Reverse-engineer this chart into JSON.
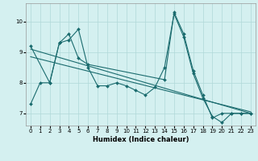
{
  "title": "",
  "xlabel": "Humidex (Indice chaleur)",
  "ylabel": "",
  "bg_color": "#d4f0f0",
  "line_color": "#1a6b6e",
  "grid_color": "#b0d8d8",
  "xlim": [
    -0.5,
    23.5
  ],
  "ylim": [
    6.6,
    10.6
  ],
  "xticks": [
    0,
    1,
    2,
    3,
    4,
    5,
    6,
    7,
    8,
    9,
    10,
    11,
    12,
    13,
    14,
    15,
    16,
    17,
    18,
    19,
    20,
    21,
    22,
    23
  ],
  "yticks": [
    7,
    8,
    9,
    10
  ],
  "series1_x": [
    0,
    1,
    2,
    3,
    4,
    5,
    6,
    7,
    8,
    9,
    10,
    11,
    12,
    13,
    14,
    15,
    16,
    17,
    18,
    19,
    20,
    21,
    22,
    23
  ],
  "series1_y": [
    7.3,
    8.0,
    8.0,
    9.3,
    9.4,
    9.75,
    8.5,
    7.9,
    7.9,
    8.0,
    7.9,
    7.75,
    7.6,
    7.85,
    8.5,
    10.25,
    9.5,
    8.3,
    7.5,
    6.9,
    6.7,
    7.0,
    7.0,
    7.0
  ],
  "series2_x": [
    0,
    2,
    3,
    4,
    5,
    6,
    14,
    15,
    16,
    17,
    18,
    19,
    20,
    21,
    22,
    23
  ],
  "series2_y": [
    9.2,
    8.0,
    9.3,
    9.6,
    8.8,
    8.6,
    8.1,
    10.3,
    9.6,
    8.4,
    7.6,
    6.85,
    7.0,
    7.0,
    7.0,
    7.0
  ],
  "series3_x": [
    0,
    23
  ],
  "series3_y": [
    9.1,
    7.0
  ],
  "series4_x": [
    0,
    23
  ],
  "series4_y": [
    8.85,
    7.05
  ],
  "xlabel_fontsize": 6,
  "tick_fontsize": 5,
  "marker_size": 2.0,
  "line_width": 0.8
}
